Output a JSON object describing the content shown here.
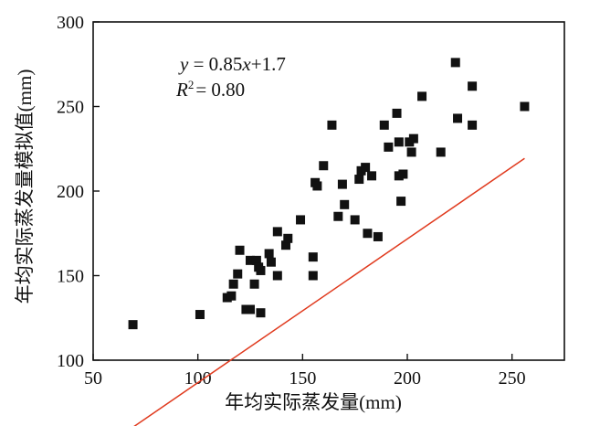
{
  "chart_data": {
    "type": "scatter",
    "title": "",
    "xlabel": "年均实际蒸发量(mm)",
    "ylabel": "年均实际蒸发量模拟值(mm)",
    "xlim": [
      50,
      275
    ],
    "ylim": [
      100,
      300
    ],
    "x_ticks": [
      "50",
      "100",
      "150",
      "200",
      "250"
    ],
    "y_ticks": [
      "100",
      "150",
      "200",
      "250",
      "300"
    ],
    "x_tick_values": [
      50,
      100,
      150,
      200,
      250
    ],
    "y_tick_values": [
      100,
      150,
      200,
      250,
      300
    ],
    "grid": false,
    "series": [
      {
        "marker": "square",
        "color": "#111111",
        "points": [
          [
            69,
            121
          ],
          [
            101,
            127
          ],
          [
            114,
            137
          ],
          [
            116,
            138
          ],
          [
            117,
            145
          ],
          [
            119,
            151
          ],
          [
            120,
            165
          ],
          [
            123,
            130
          ],
          [
            125,
            130
          ],
          [
            125,
            159
          ],
          [
            127,
            145
          ],
          [
            128,
            159
          ],
          [
            129,
            155
          ],
          [
            130,
            153
          ],
          [
            130,
            128
          ],
          [
            134,
            163
          ],
          [
            135,
            158
          ],
          [
            138,
            150
          ],
          [
            138,
            176
          ],
          [
            142,
            168
          ],
          [
            143,
            172
          ],
          [
            149,
            183
          ],
          [
            155,
            150
          ],
          [
            155,
            161
          ],
          [
            156,
            205
          ],
          [
            157,
            203
          ],
          [
            160,
            215
          ],
          [
            164,
            239
          ],
          [
            167,
            185
          ],
          [
            169,
            204
          ],
          [
            170,
            192
          ],
          [
            175,
            183
          ],
          [
            177,
            207
          ],
          [
            178,
            212
          ],
          [
            180,
            214
          ],
          [
            181,
            175
          ],
          [
            183,
            209
          ],
          [
            186,
            173
          ],
          [
            189,
            239
          ],
          [
            191,
            226
          ],
          [
            195,
            246
          ],
          [
            196,
            209
          ],
          [
            196,
            229
          ],
          [
            197,
            194
          ],
          [
            198,
            210
          ],
          [
            201,
            229
          ],
          [
            202,
            223
          ],
          [
            203,
            231
          ],
          [
            207,
            256
          ],
          [
            216,
            223
          ],
          [
            223,
            276
          ],
          [
            224,
            243
          ],
          [
            231,
            262
          ],
          [
            231,
            239
          ],
          [
            256,
            250
          ]
        ]
      }
    ],
    "fit_line": {
      "slope": 0.85,
      "intercept": 1.7,
      "x_range": [
        69,
        256
      ],
      "color": "#e03a1e"
    },
    "annotations": {
      "equation": {
        "y": "y",
        "eq_mid": " = 0.85",
        "x": "x",
        "eq_end": "+1.7"
      },
      "r2": {
        "r": "R",
        "sup": "2",
        "rest": "= 0.80"
      }
    }
  }
}
